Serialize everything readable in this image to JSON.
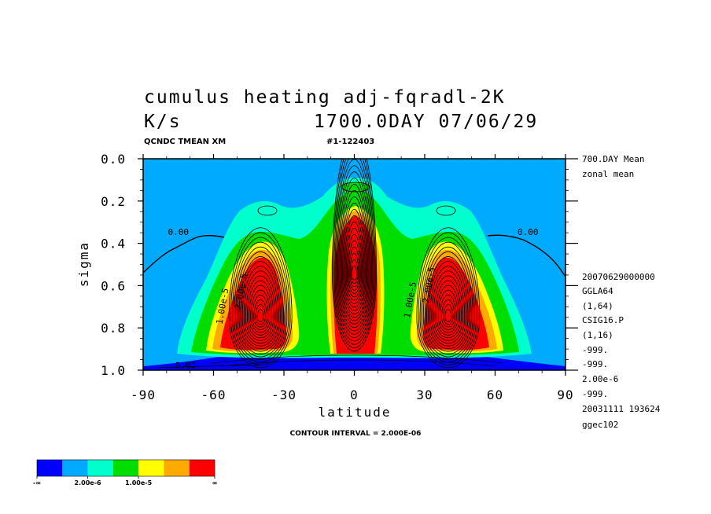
{
  "chart_data": {
    "type": "heatmap",
    "title_line1": "cumulus heating  adj-fqradl-2K",
    "title_units": "K/s",
    "title_time": "1700.0DAY 07/06/29",
    "subtitle_left": "QCNDC TMEAN XM",
    "subtitle_right": "#1-122403",
    "xlabel": "latitude",
    "ylabel": "sigma",
    "xlim": [
      -90,
      90
    ],
    "ylim": [
      1.0,
      0.0
    ],
    "x_ticks": [
      -90,
      -60,
      -30,
      0,
      30,
      60,
      90
    ],
    "x_tick_labels": [
      "-90",
      "-60",
      "-30",
      "0",
      "30",
      "60",
      "90"
    ],
    "y_ticks": [
      0.0,
      0.2,
      0.4,
      0.6,
      0.8,
      1.0
    ],
    "y_tick_labels": [
      "0.0",
      "0.2",
      "0.4",
      "0.6",
      "0.8",
      "1.0"
    ],
    "contour_interval_label": "CONTOUR INTERVAL = 2.000E-06",
    "contour_interval": 2e-06,
    "contour_labels": [
      {
        "text": "0.00",
        "lat": -75,
        "sigma": 0.36
      },
      {
        "text": "0.00",
        "lat": 74,
        "sigma": 0.36
      },
      {
        "text": "1.00e-5",
        "lat": -55,
        "sigma": 0.7
      },
      {
        "text": "2.00e-5",
        "lat": -47,
        "sigma": 0.63
      },
      {
        "text": "1.00e-5",
        "lat": 25,
        "sigma": 0.67
      },
      {
        "text": "2.00e-5",
        "lat": 33,
        "sigma": 0.6
      },
      {
        "text": "0.00",
        "lat": -72,
        "sigma": 0.99
      }
    ],
    "features": [
      {
        "name": "southern-max",
        "lat": -40,
        "sigma": 0.75,
        "peak": 6e-05
      },
      {
        "name": "equatorial-max",
        "lat": 0,
        "sigma": 0.55,
        "peak": 8e-05
      },
      {
        "name": "northern-max",
        "lat": 40,
        "sigma": 0.75,
        "peak": 6e-05
      }
    ],
    "colorbar": {
      "colors": [
        "#0000ff",
        "#00aaff",
        "#00ffcc",
        "#00dd00",
        "#ffff00",
        "#ffaa00",
        "#ff0000"
      ],
      "labels": [
        "-∞",
        "2.00e-6",
        "1.00e-5",
        "∞"
      ]
    },
    "side_info": [
      "700.DAY Mean",
      "zonal mean",
      "20070629000000",
      "GGLA64",
      "(1,64)",
      "CSIG16.P",
      "(1,16)",
      "-999.",
      "-999.",
      "2.00e-6",
      "-999.",
      "20031111 193624",
      "ggec102"
    ]
  }
}
